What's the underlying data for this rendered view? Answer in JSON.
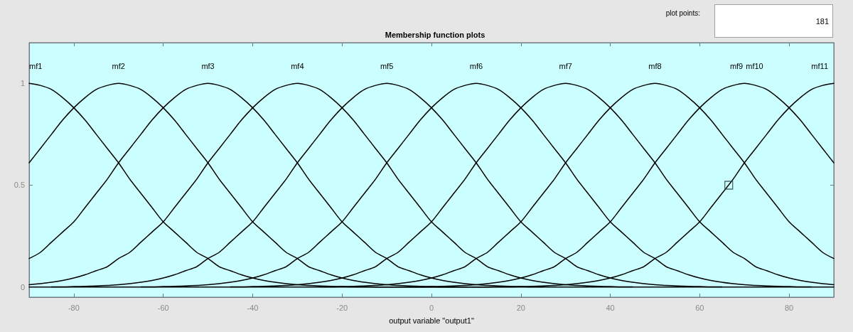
{
  "chart_data": {
    "type": "line",
    "title": "Membership function plots",
    "xlabel": "output variable \"output1\"",
    "x": [
      -90,
      -87.5,
      -85,
      -82.5,
      -80,
      -77.5,
      -75,
      -72.5,
      -70,
      -67.5,
      -65,
      -62.5,
      -60,
      -57.5,
      -55,
      -52.5,
      -50,
      -47.5,
      -45,
      -42.5,
      -40,
      -37.5,
      -35,
      -32.5,
      -30,
      -27.5,
      -25,
      -22.5,
      -20,
      -17.5,
      -15,
      -12.5,
      -10,
      -7.5,
      -5,
      -2.5,
      0,
      2.5,
      5,
      7.5,
      10,
      12.5,
      15,
      17.5,
      20,
      22.5,
      25,
      27.5,
      30,
      32.5,
      35,
      37.5,
      40,
      42.5,
      45,
      47.5,
      50,
      52.5,
      55,
      57.5,
      60,
      62.5,
      65,
      67.5,
      70,
      72.5,
      75,
      77.5,
      80,
      82.5,
      85,
      87.5,
      90
    ],
    "series": [
      {
        "name": "mf1",
        "color": "#000000",
        "values": [
          1,
          0.99,
          0.97,
          0.93,
          0.88,
          0.82,
          0.75,
          0.68,
          0.61,
          0.53,
          0.46,
          0.39,
          0.32,
          0.27,
          0.22,
          0.17,
          0.14,
          0.1,
          0.08,
          0.06,
          0.044,
          0.032,
          0.023,
          0.016,
          0.011,
          0.008,
          0.005,
          0.003,
          0.002,
          0.001,
          0.001,
          0,
          0,
          0,
          0,
          0,
          0,
          0,
          0,
          0,
          0,
          0,
          0,
          0,
          0,
          0,
          0,
          0,
          0,
          0,
          0,
          0,
          0,
          0,
          0,
          0,
          0,
          0,
          0,
          0,
          0,
          0,
          0,
          0,
          0,
          0,
          0,
          0,
          0,
          0,
          0,
          0,
          0
        ]
      },
      {
        "name": "mf2",
        "color": "#000000",
        "values": [
          0.61,
          0.68,
          0.75,
          0.82,
          0.88,
          0.93,
          0.97,
          0.99,
          1,
          0.99,
          0.97,
          0.93,
          0.88,
          0.82,
          0.75,
          0.68,
          0.61,
          0.53,
          0.46,
          0.39,
          0.32,
          0.27,
          0.22,
          0.17,
          0.14,
          0.1,
          0.08,
          0.06,
          0.044,
          0.032,
          0.023,
          0.016,
          0.011,
          0.008,
          0.005,
          0.003,
          0.002,
          0.001,
          0.001,
          null,
          null,
          null,
          null,
          null,
          null,
          null,
          null,
          null,
          null,
          null,
          null,
          null,
          null,
          null,
          null,
          null,
          null,
          null,
          null,
          null,
          null,
          null,
          null,
          null,
          null,
          null,
          null,
          null,
          null,
          null,
          null,
          null,
          null
        ]
      },
      {
        "name": "mf3",
        "color": "#000000",
        "values": [
          0.14,
          0.17,
          0.22,
          0.27,
          0.32,
          0.39,
          0.46,
          0.53,
          0.61,
          0.68,
          0.75,
          0.82,
          0.88,
          0.93,
          0.97,
          0.99,
          1,
          0.99,
          0.97,
          0.93,
          0.88,
          0.82,
          0.75,
          0.68,
          0.61,
          0.53,
          0.46,
          0.39,
          0.32,
          0.27,
          0.22,
          0.17,
          0.14,
          0.1,
          0.08,
          0.06,
          0.044,
          0.032,
          0.023,
          0.016,
          0.011,
          0.008,
          0.005,
          0.003,
          0.002,
          0.001,
          0.001,
          null,
          null,
          null,
          null,
          null,
          null,
          null,
          null,
          null,
          null,
          null,
          null,
          null,
          null,
          null,
          null,
          null,
          null,
          null,
          null,
          null,
          null,
          null,
          null,
          null,
          null
        ]
      },
      {
        "name": "mf4",
        "color": "#000000",
        "values": [
          0.011,
          0.016,
          0.023,
          0.032,
          0.044,
          0.06,
          0.08,
          0.1,
          0.14,
          0.17,
          0.22,
          0.27,
          0.32,
          0.39,
          0.46,
          0.53,
          0.61,
          0.68,
          0.75,
          0.82,
          0.88,
          0.93,
          0.97,
          0.99,
          1,
          0.99,
          0.97,
          0.93,
          0.88,
          0.82,
          0.75,
          0.68,
          0.61,
          0.53,
          0.46,
          0.39,
          0.32,
          0.27,
          0.22,
          0.17,
          0.14,
          0.1,
          0.08,
          0.06,
          0.044,
          0.032,
          0.023,
          0.016,
          0.011,
          0.008,
          0.005,
          0.003,
          0.002,
          0.001,
          0.001,
          null,
          null,
          null,
          null,
          null,
          null,
          null,
          null,
          null,
          null,
          null,
          null,
          null,
          null,
          null,
          null,
          null,
          null
        ]
      },
      {
        "name": "mf5",
        "color": "#000000",
        "values": [
          null,
          null,
          0.001,
          0.001,
          0.002,
          0.003,
          0.005,
          0.008,
          0.011,
          0.016,
          0.023,
          0.032,
          0.044,
          0.06,
          0.08,
          0.1,
          0.14,
          0.17,
          0.22,
          0.27,
          0.32,
          0.39,
          0.46,
          0.53,
          0.61,
          0.68,
          0.75,
          0.82,
          0.88,
          0.93,
          0.97,
          0.99,
          1,
          0.99,
          0.97,
          0.93,
          0.88,
          0.82,
          0.75,
          0.68,
          0.61,
          0.53,
          0.46,
          0.39,
          0.32,
          0.27,
          0.22,
          0.17,
          0.14,
          0.1,
          0.08,
          0.06,
          0.044,
          0.032,
          0.023,
          0.016,
          0.011,
          0.008,
          0.005,
          0.003,
          0.002,
          0.001,
          0.001,
          null,
          null,
          null,
          null,
          null,
          null,
          null,
          null,
          null,
          null
        ]
      },
      {
        "name": "mf6",
        "color": "#000000",
        "values": [
          null,
          null,
          null,
          null,
          null,
          null,
          null,
          null,
          null,
          null,
          0.001,
          0.001,
          0.002,
          0.003,
          0.005,
          0.008,
          0.011,
          0.016,
          0.023,
          0.032,
          0.044,
          0.06,
          0.08,
          0.1,
          0.14,
          0.17,
          0.22,
          0.27,
          0.32,
          0.39,
          0.46,
          0.53,
          0.61,
          0.68,
          0.75,
          0.82,
          0.88,
          0.93,
          0.97,
          0.99,
          1,
          0.99,
          0.97,
          0.93,
          0.88,
          0.82,
          0.75,
          0.68,
          0.61,
          0.53,
          0.46,
          0.39,
          0.32,
          0.27,
          0.22,
          0.17,
          0.14,
          0.1,
          0.08,
          0.06,
          0.044,
          0.032,
          0.023,
          0.016,
          0.011,
          0.008,
          0.005,
          0.003,
          0.002,
          0.001,
          0.001,
          null,
          null
        ]
      },
      {
        "name": "mf7",
        "color": "#000000",
        "values": [
          null,
          null,
          null,
          null,
          null,
          null,
          null,
          null,
          null,
          null,
          null,
          null,
          null,
          null,
          null,
          null,
          null,
          null,
          0.001,
          0.001,
          0.002,
          0.003,
          0.005,
          0.008,
          0.011,
          0.016,
          0.023,
          0.032,
          0.044,
          0.06,
          0.08,
          0.1,
          0.14,
          0.17,
          0.22,
          0.27,
          0.32,
          0.39,
          0.46,
          0.53,
          0.61,
          0.68,
          0.75,
          0.82,
          0.88,
          0.93,
          0.97,
          0.99,
          1,
          0.99,
          0.97,
          0.93,
          0.88,
          0.82,
          0.75,
          0.68,
          0.61,
          0.53,
          0.46,
          0.39,
          0.32,
          0.27,
          0.22,
          0.17,
          0.14,
          0.1,
          0.08,
          0.06,
          0.044,
          0.032,
          0.023,
          0.016,
          0.011
        ]
      },
      {
        "name": "mf8",
        "color": "#000000",
        "values": [
          null,
          null,
          null,
          null,
          null,
          null,
          null,
          null,
          null,
          null,
          null,
          null,
          null,
          null,
          null,
          null,
          null,
          null,
          null,
          null,
          null,
          null,
          null,
          null,
          null,
          null,
          0.001,
          0.001,
          0.002,
          0.003,
          0.005,
          0.008,
          0.011,
          0.016,
          0.023,
          0.032,
          0.044,
          0.06,
          0.08,
          0.1,
          0.14,
          0.17,
          0.22,
          0.27,
          0.32,
          0.39,
          0.46,
          0.53,
          0.61,
          0.68,
          0.75,
          0.82,
          0.88,
          0.93,
          0.97,
          0.99,
          1,
          0.99,
          0.97,
          0.93,
          0.88,
          0.82,
          0.75,
          0.68,
          0.61,
          0.53,
          0.46,
          0.39,
          0.32,
          0.27,
          0.22,
          0.17,
          0.14
        ]
      },
      {
        "name": "mf10",
        "color": "#000000",
        "values": [
          null,
          null,
          null,
          null,
          null,
          null,
          null,
          null,
          null,
          null,
          null,
          null,
          null,
          null,
          null,
          null,
          null,
          null,
          null,
          null,
          null,
          null,
          null,
          null,
          null,
          null,
          null,
          null,
          null,
          null,
          null,
          null,
          null,
          null,
          0.001,
          0.001,
          0.002,
          0.003,
          0.005,
          0.008,
          0.011,
          0.016,
          0.023,
          0.032,
          0.044,
          0.06,
          0.08,
          0.1,
          0.14,
          0.17,
          0.22,
          0.27,
          0.32,
          0.39,
          0.46,
          0.53,
          0.61,
          0.68,
          0.75,
          0.82,
          0.88,
          0.93,
          0.97,
          0.99,
          1,
          0.99,
          0.97,
          0.93,
          0.88,
          0.82,
          0.75,
          0.68,
          0.61
        ]
      },
      {
        "name": "mf11",
        "color": "#000000",
        "values": [
          0,
          0,
          0,
          0,
          0,
          0,
          0,
          0,
          0,
          0,
          0,
          0,
          0,
          0,
          0,
          0,
          0,
          0,
          0,
          0,
          0,
          0,
          0,
          0,
          0,
          0,
          0,
          0,
          0,
          0,
          0,
          0,
          0,
          0,
          0,
          0,
          0,
          0,
          0,
          0,
          0,
          0,
          0.001,
          0.001,
          0.002,
          0.003,
          0.005,
          0.008,
          0.011,
          0.016,
          0.023,
          0.032,
          0.044,
          0.06,
          0.08,
          0.1,
          0.14,
          0.17,
          0.22,
          0.27,
          0.32,
          0.39,
          0.46,
          0.53,
          0.61,
          0.68,
          0.75,
          0.82,
          0.88,
          0.93,
          0.97,
          0.99,
          1
        ]
      },
      {
        "type": "scatter",
        "x": [
          66.5
        ],
        "values": [
          0.5
        ],
        "color": "#2a4444",
        "marker": "square"
      }
    ],
    "xlim": [
      -90,
      90
    ],
    "ylim": [
      -0.05,
      1.2
    ],
    "xticks": [
      -80,
      -60,
      -40,
      -20,
      0,
      20,
      40,
      60,
      80
    ],
    "yticks": [
      0,
      0.5,
      1
    ],
    "grid": false,
    "legend": false,
    "marker": "none",
    "line_style": "solid",
    "annotations": [
      "plot points:",
      "181",
      {
        "text": "mf9",
        "x": 70,
        "y": 1
      }
    ]
  }
}
